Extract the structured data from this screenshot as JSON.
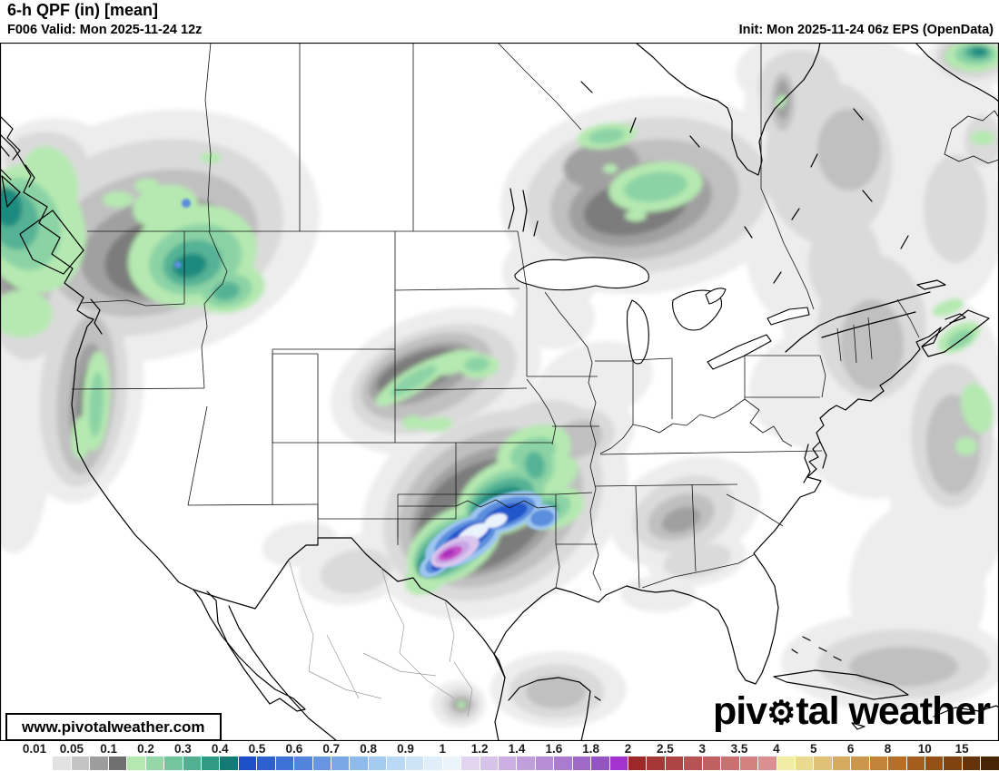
{
  "header": {
    "title": "6-h QPF (in) [mean]",
    "valid": "F006 Valid: Mon 2025-11-24 12z",
    "init": "Init: Mon 2025-11-24 06z EPS (OpenData)"
  },
  "watermark": "www.pivotalweather.com",
  "logo": {
    "pre": "piv",
    "gear_icon": "⚙",
    "post": "tal weather"
  },
  "colorbar": {
    "units": "in",
    "tick_labels": [
      "0.01",
      "0.05",
      "0.1",
      "0.2",
      "0.3",
      "0.4",
      "0.5",
      "0.6",
      "0.7",
      "0.8",
      "0.9",
      "1",
      "1.2",
      "1.4",
      "1.6",
      "1.8",
      "2",
      "2.5",
      "3",
      "3.5",
      "4",
      "5",
      "6",
      "8",
      "10",
      "15"
    ],
    "swatch_colors": [
      "#ffffff",
      "#e2e2e2",
      "#c3c3c3",
      "#9d9d9d",
      "#6f6f6f",
      "#b4e8b0",
      "#93d8a6",
      "#72c59c",
      "#51b091",
      "#309a85",
      "#147a74",
      "#1d50c8",
      "#2d60ce",
      "#3f72d5",
      "#5284db",
      "#6696e1",
      "#7aa8e7",
      "#8fbaec",
      "#a5cbf1",
      "#bad9f4",
      "#cde4f7",
      "#dfeef9",
      "#ebf4fb",
      "#e2d3f1",
      "#d7c2ea",
      "#ccb0e4",
      "#c19fdd",
      "#b68dd6",
      "#aa7bcf",
      "#9f69c8",
      "#9355c1",
      "#a433cd",
      "#9c2828",
      "#a53737",
      "#ae4545",
      "#b75353",
      "#c06161",
      "#c97070",
      "#d28080",
      "#da9090",
      "#f2eda6",
      "#ead98e",
      "#e0c277",
      "#d6ab60",
      "#cc964d",
      "#c2823a",
      "#b56f28",
      "#a55d1d",
      "#935017",
      "#7f4211",
      "#65340c",
      "#472507"
    ]
  },
  "map_data": {
    "type": "filled-contour precipitation map",
    "region": "North America / CONUS",
    "units": "in",
    "notable_maxima": [
      {
        "area": "Texas / Oklahoma",
        "approx_peak_in": "1.8-2"
      },
      {
        "area": "Idaho / western Montana",
        "approx_peak_in": "0.5-0.7"
      },
      {
        "area": "British Columbia coast",
        "approx_peak_in": "0.4-0.6"
      },
      {
        "area": "Northern Ontario",
        "approx_peak_in": "0.2-0.3"
      },
      {
        "area": "Nebraska / South Dakota arc",
        "approx_peak_in": "0.2-0.3"
      },
      {
        "area": "Atlantic off Nova Scotia",
        "approx_peak_in": "0.2-0.3"
      },
      {
        "area": "Northeastern Quebec corner",
        "approx_peak_in": "0.4-0.5"
      }
    ]
  }
}
